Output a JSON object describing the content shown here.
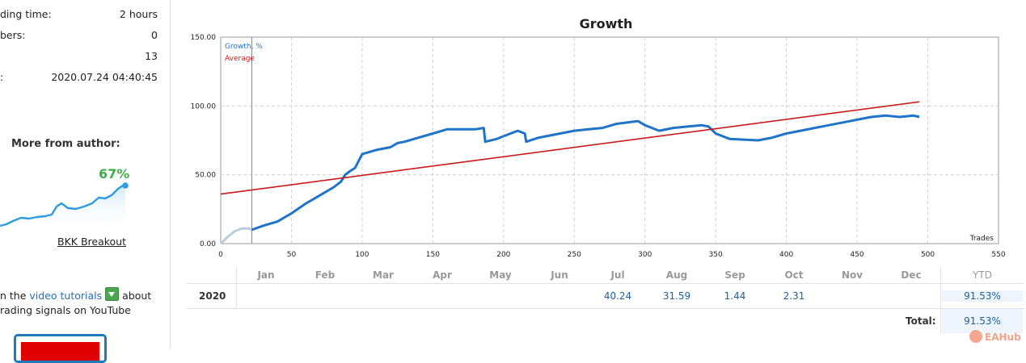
{
  "sidebar": {
    "stats": [
      {
        "label": "ding time:",
        "value": "2 hours"
      },
      {
        "label": "bers:",
        "value": "0"
      },
      {
        "label": "",
        "value": "13"
      },
      {
        "label": ":",
        "value": "2020.07.24 04:40:45"
      }
    ],
    "author": {
      "title": "More from author:",
      "percent": "67%",
      "link": "BKK Breakout",
      "sparkline_color": "#2e9be0"
    },
    "tutorials": {
      "line1_prefix": "n the ",
      "link": "video tutorials",
      "line1_suffix": " about",
      "line2": "rading signals on YouTube",
      "icon": "download-icon"
    }
  },
  "chart": {
    "title": "Growth",
    "legend": [
      {
        "label": "Growth, %",
        "color": "#1e74c8"
      },
      {
        "label": "Average",
        "color": "#cc1a1a"
      }
    ],
    "x_axis_label": "Trades"
  },
  "chart_data": {
    "type": "line",
    "title": "Growth",
    "xlabel": "Trades",
    "ylabel": "",
    "xlim": [
      0,
      550
    ],
    "ylim": [
      0,
      150
    ],
    "x_ticks": [
      0,
      50,
      100,
      150,
      200,
      250,
      300,
      350,
      400,
      450,
      500,
      550
    ],
    "y_ticks": [
      "0.00",
      "50.00",
      "100.00",
      "150.00"
    ],
    "grid": true,
    "legend_position": "top-left",
    "marker_x": 22,
    "series": [
      {
        "name": "Growth, %",
        "color": "#1e74c8",
        "x": [
          0,
          5,
          10,
          15,
          20,
          22,
          30,
          40,
          50,
          60,
          70,
          80,
          85,
          88,
          92,
          95,
          100,
          110,
          120,
          125,
          130,
          140,
          150,
          160,
          170,
          180,
          186,
          187,
          195,
          200,
          210,
          215,
          216,
          225,
          240,
          250,
          260,
          270,
          280,
          295,
          300,
          310,
          320,
          330,
          340,
          345,
          350,
          360,
          380,
          390,
          400,
          410,
          420,
          430,
          440,
          450,
          460,
          470,
          480,
          490,
          494
        ],
        "y": [
          0,
          5,
          9,
          11,
          11,
          10,
          13,
          16,
          22,
          29,
          35,
          41,
          45,
          50,
          53,
          55,
          65,
          68,
          70,
          73,
          74,
          77,
          80,
          83,
          83,
          83,
          84,
          74,
          76,
          78,
          82,
          80,
          74,
          77,
          80,
          82,
          83,
          84,
          87,
          89,
          86,
          82,
          84,
          85,
          86,
          85,
          80,
          76,
          75,
          77,
          80,
          82,
          84,
          86,
          88,
          90,
          92,
          93,
          92,
          93,
          92
        ]
      },
      {
        "name": "Average",
        "color": "#cc1a1a",
        "x": [
          0,
          494
        ],
        "y": [
          36,
          103
        ]
      }
    ]
  },
  "table": {
    "months": [
      "Jan",
      "Feb",
      "Mar",
      "Apr",
      "May",
      "Jun",
      "Jul",
      "Aug",
      "Sep",
      "Oct",
      "Nov",
      "Dec"
    ],
    "ytd_header": "YTD",
    "year": "2020",
    "values": [
      "",
      "",
      "",
      "",
      "",
      "",
      "40.24",
      "31.59",
      "1.44",
      "2.31",
      "",
      ""
    ],
    "ytd_value": "91.53%",
    "total_label": "Total:",
    "total_value": "91.53%"
  },
  "watermark": {
    "text": "EAHub"
  }
}
